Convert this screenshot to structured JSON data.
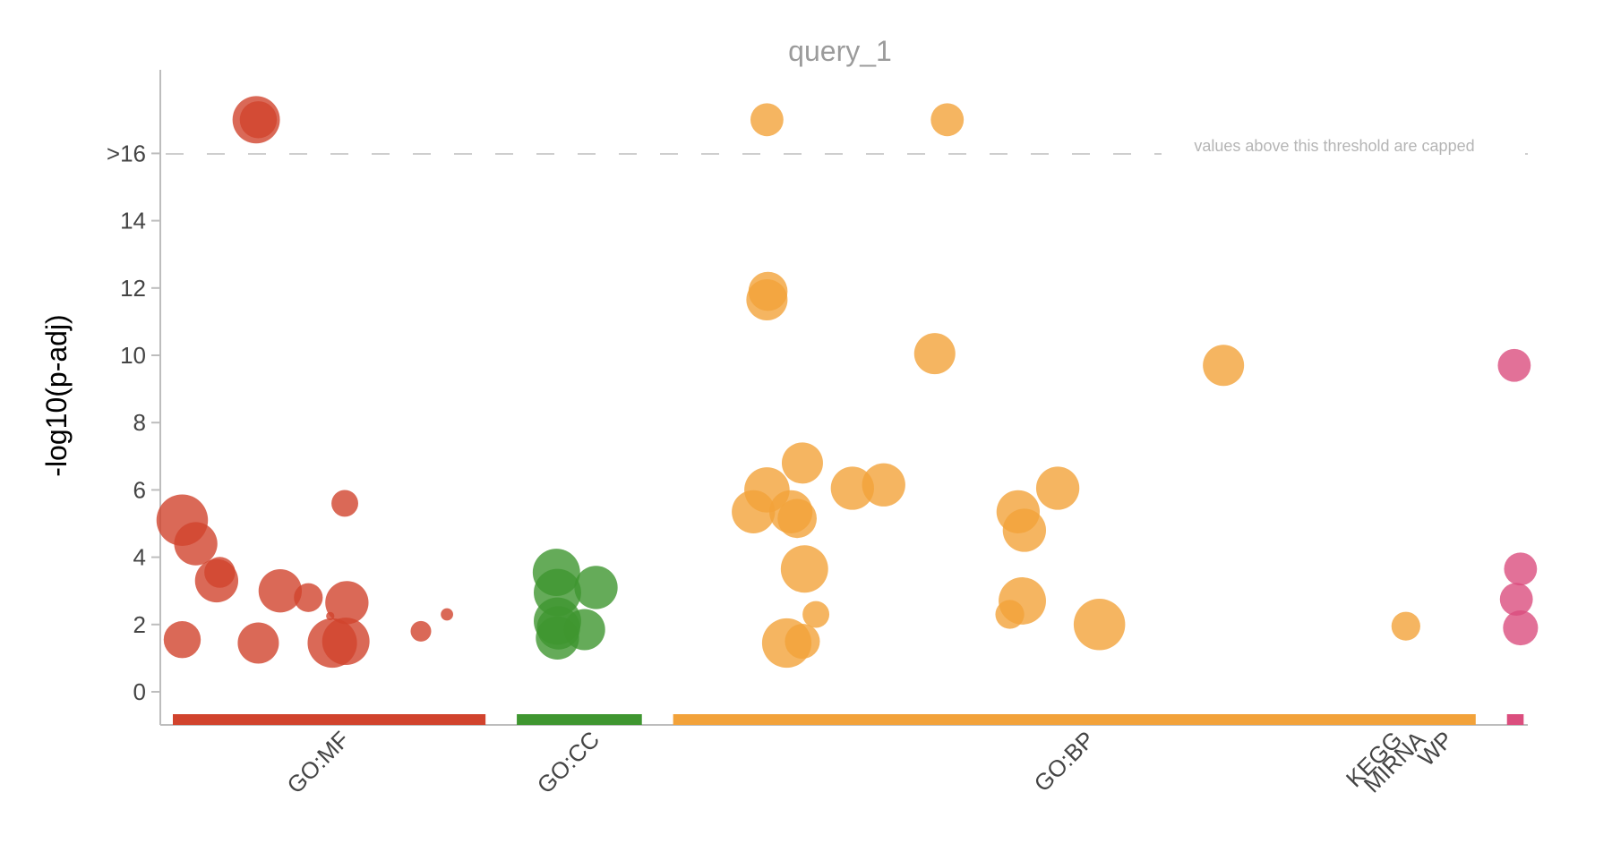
{
  "chart_data": {
    "type": "scatter",
    "title": "query_1",
    "ylabel": "-log10(p-adj)",
    "xlabel": "",
    "ylim": [
      -1,
      17.4
    ],
    "yticks": [
      0,
      2,
      4,
      6,
      8,
      10,
      12,
      14
    ],
    "cap_tick_label": ">16",
    "cap_value": 16,
    "threshold_annotation": "values above this threshold are capped",
    "categories": [
      {
        "name": "GO:MF",
        "color": "#d1432d",
        "range": [
          0,
          30
        ]
      },
      {
        "name": "GO:CC",
        "color": "#3f9630",
        "range": [
          33,
          45
        ]
      },
      {
        "name": "GO:BP",
        "color": "#f2a23a",
        "range": [
          48,
          125
        ]
      },
      {
        "name": "KEGG",
        "color": "#db4e7e",
        "range": [
          128,
          129.6
        ]
      },
      {
        "name": "MIRNA",
        "color": "#22aa99",
        "range": [
          129.6,
          129.6
        ]
      },
      {
        "name": "WP",
        "color": "#0099c6",
        "range": [
          129.6,
          129.6
        ]
      }
    ],
    "series": [
      {
        "name": "GO:MF",
        "color": "#d1432d",
        "points": [
          {
            "x": 8,
            "y": 17,
            "s": 2.3
          },
          {
            "x": 8.2,
            "y": 17,
            "s": 1.8
          },
          {
            "x": 0.9,
            "y": 5.1,
            "s": 2.5
          },
          {
            "x": 2.2,
            "y": 4.4,
            "s": 2.1
          },
          {
            "x": 4.5,
            "y": 3.55,
            "s": 1.5
          },
          {
            "x": 4.2,
            "y": 3.3,
            "s": 2.1
          },
          {
            "x": 10.3,
            "y": 3.0,
            "s": 2.1
          },
          {
            "x": 13,
            "y": 2.8,
            "s": 1.4
          },
          {
            "x": 16.5,
            "y": 5.6,
            "s": 1.3
          },
          {
            "x": 16.7,
            "y": 2.65,
            "s": 2.1
          },
          {
            "x": 0.9,
            "y": 1.55,
            "s": 1.8
          },
          {
            "x": 8.2,
            "y": 1.45,
            "s": 2.0
          },
          {
            "x": 15.3,
            "y": 1.45,
            "s": 2.4
          },
          {
            "x": 16.6,
            "y": 1.5,
            "s": 2.3
          },
          {
            "x": 15.1,
            "y": 2.25,
            "s": 0.4
          },
          {
            "x": 23.8,
            "y": 1.8,
            "s": 1.0
          },
          {
            "x": 26.3,
            "y": 2.3,
            "s": 0.6
          }
        ]
      },
      {
        "name": "GO:CC",
        "color": "#3f9630",
        "points": [
          {
            "x": 36.8,
            "y": 3.55,
            "s": 2.3
          },
          {
            "x": 36.9,
            "y": 2.95,
            "s": 2.3
          },
          {
            "x": 40.6,
            "y": 3.1,
            "s": 2.1
          },
          {
            "x": 36.9,
            "y": 2.1,
            "s": 2.3
          },
          {
            "x": 37,
            "y": 1.9,
            "s": 2.1
          },
          {
            "x": 36.9,
            "y": 1.6,
            "s": 2.1
          },
          {
            "x": 39.5,
            "y": 1.85,
            "s": 2.0
          }
        ]
      },
      {
        "name": "GO:BP",
        "color": "#f2a23a",
        "points": [
          {
            "x": 57,
            "y": 17,
            "s": 1.6
          },
          {
            "x": 74.3,
            "y": 17,
            "s": 1.6
          },
          {
            "x": 57.1,
            "y": 11.9,
            "s": 1.9
          },
          {
            "x": 57,
            "y": 11.65,
            "s": 2.0
          },
          {
            "x": 73.1,
            "y": 10.05,
            "s": 2.0
          },
          {
            "x": 100.8,
            "y": 9.7,
            "s": 2.0
          },
          {
            "x": 60.4,
            "y": 6.8,
            "s": 2.0
          },
          {
            "x": 57,
            "y": 6.0,
            "s": 2.2
          },
          {
            "x": 65.2,
            "y": 6.05,
            "s": 2.1
          },
          {
            "x": 68.2,
            "y": 6.15,
            "s": 2.1
          },
          {
            "x": 84.9,
            "y": 6.05,
            "s": 2.1
          },
          {
            "x": 55.7,
            "y": 5.35,
            "s": 2.1
          },
          {
            "x": 59.3,
            "y": 5.35,
            "s": 2.1
          },
          {
            "x": 59.9,
            "y": 5.15,
            "s": 1.9
          },
          {
            "x": 81.1,
            "y": 5.35,
            "s": 2.1
          },
          {
            "x": 81.7,
            "y": 4.8,
            "s": 2.1
          },
          {
            "x": 60.6,
            "y": 3.65,
            "s": 2.3
          },
          {
            "x": 81.5,
            "y": 2.7,
            "s": 2.3
          },
          {
            "x": 80.3,
            "y": 2.3,
            "s": 1.4
          },
          {
            "x": 61.7,
            "y": 2.3,
            "s": 1.3
          },
          {
            "x": 58.9,
            "y": 1.45,
            "s": 2.4
          },
          {
            "x": 60.4,
            "y": 1.5,
            "s": 1.7
          },
          {
            "x": 88.9,
            "y": 2.0,
            "s": 2.5
          },
          {
            "x": 118.3,
            "y": 1.95,
            "s": 1.4
          }
        ]
      },
      {
        "name": "KEGG",
        "color": "#db4e7e",
        "points": [
          {
            "x": 128.7,
            "y": 9.7,
            "s": 1.6
          },
          {
            "x": 129.3,
            "y": 3.65,
            "s": 1.6
          },
          {
            "x": 128.9,
            "y": 2.75,
            "s": 1.6
          },
          {
            "x": 129.3,
            "y": 1.9,
            "s": 1.7
          }
        ]
      }
    ]
  }
}
